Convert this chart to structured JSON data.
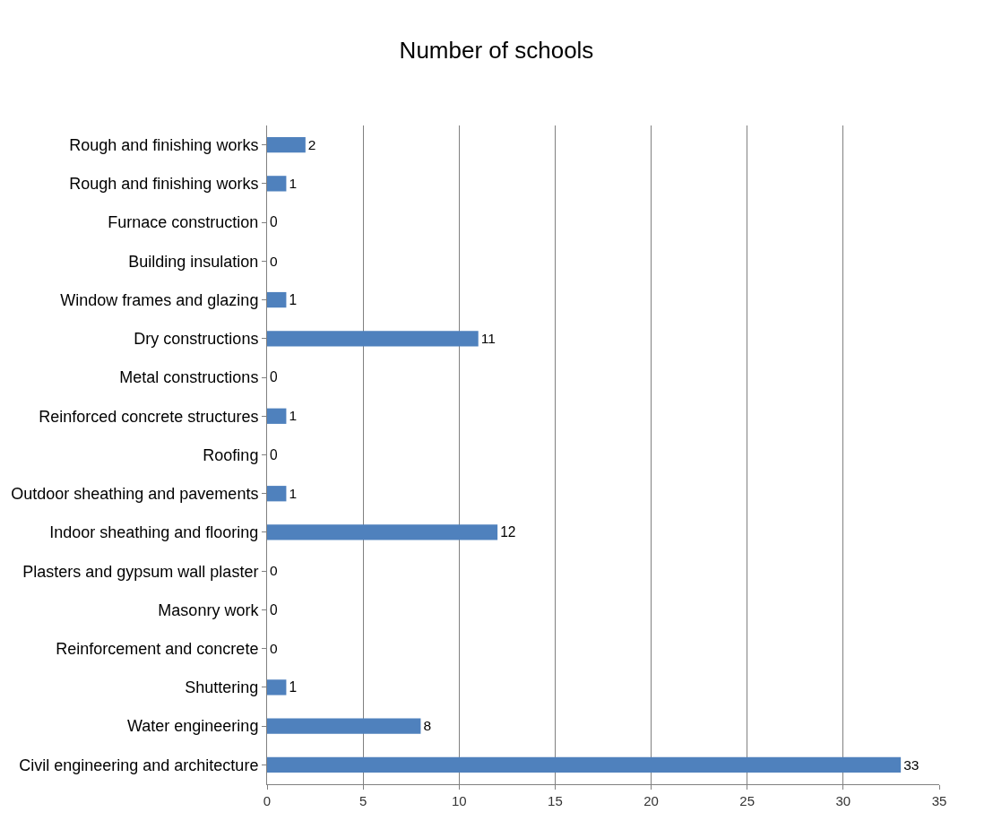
{
  "chart_data": {
    "type": "bar",
    "orientation": "horizontal",
    "title": "Number of schools",
    "categories": [
      "Rough and finishing works",
      "Rough and finishing works",
      "Furnace construction",
      "Building insulation",
      "Window frames and glazing",
      "Dry constructions",
      "Metal constructions",
      "Reinforced concrete structures",
      "Roofing",
      "Outdoor sheathing and pavements",
      "Indoor sheathing and flooring",
      "Plasters and gypsum wall plaster",
      "Masonry work",
      "Reinforcement and concrete",
      "Shuttering",
      "Water engineering",
      "Civil engineering and architecture"
    ],
    "values": [
      2,
      1,
      0,
      0,
      1,
      11,
      0,
      1,
      0,
      1,
      12,
      0,
      0,
      0,
      1,
      8,
      33
    ],
    "color": "#4f81bd",
    "xlim": [
      0,
      35
    ],
    "xticks": [
      0,
      5,
      10,
      15,
      20,
      25,
      30,
      35
    ],
    "grid": "x",
    "data_labels": true,
    "legend": false
  }
}
